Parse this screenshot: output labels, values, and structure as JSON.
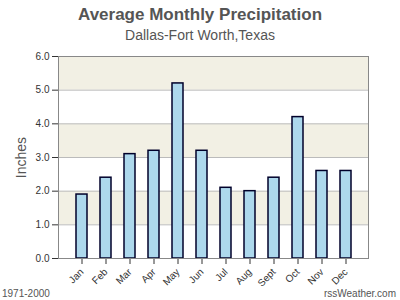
{
  "chart_data": {
    "type": "bar",
    "title": "Average Monthly Precipitation",
    "subtitle": "Dallas-Fort Worth,Texas",
    "y_label": "Inches",
    "categories": [
      "Jan",
      "Feb",
      "Mar",
      "Apr",
      "May",
      "Jun",
      "Jul",
      "Aug",
      "Sept",
      "Oct",
      "Nov",
      "Dec"
    ],
    "values": [
      1.9,
      2.4,
      3.1,
      3.2,
      5.2,
      3.2,
      2.1,
      2.0,
      2.4,
      4.2,
      2.6,
      2.6
    ],
    "color": "#add8ec",
    "ylim": [
      0,
      6
    ],
    "yticks": [
      {
        "value": 0,
        "label": "0.0"
      },
      {
        "value": 1,
        "label": "1.0"
      },
      {
        "value": 2,
        "label": "2.0"
      },
      {
        "value": 3,
        "label": "3.0"
      },
      {
        "value": 4,
        "label": "4.0"
      },
      {
        "value": 5,
        "label": "5.0"
      },
      {
        "value": 6,
        "label": "6.0"
      }
    ],
    "grid": true,
    "annotations": [
      "1971-2000",
      "rssWeather.com"
    ]
  }
}
